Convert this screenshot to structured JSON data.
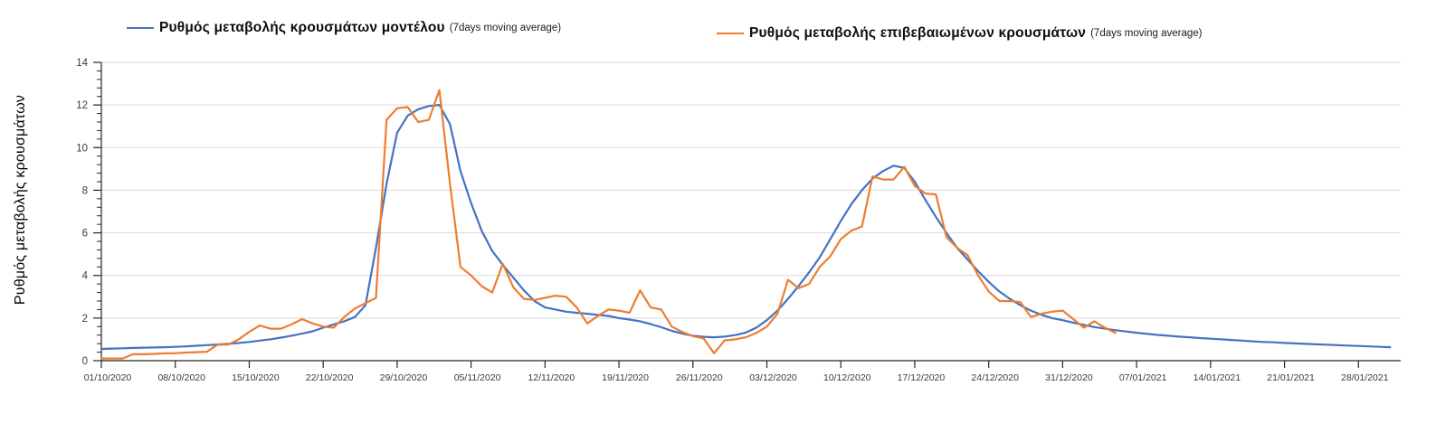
{
  "chart_data": {
    "type": "line",
    "title": "",
    "xlabel": "",
    "ylabel": "Ρυθμός μεταβολής κρουσμάτων",
    "ylim": [
      0,
      14
    ],
    "y_major_ticks": [
      0,
      2,
      4,
      6,
      8,
      10,
      12,
      14
    ],
    "y_minor_unit": 0.4,
    "grid": "horizontal-major-only",
    "legend_position": "top",
    "frequency": "daily",
    "start_date": "01/10/2020",
    "x_tick_interval_days": 7,
    "x_tick_labels": [
      "01/10/2020",
      "08/10/2020",
      "15/10/2020",
      "22/10/2020",
      "29/10/2020",
      "05/11/2020",
      "12/11/2020",
      "19/11/2020",
      "26/11/2020",
      "03/12/2020",
      "10/12/2020",
      "17/12/2020",
      "24/12/2020",
      "31/12/2020",
      "07/01/2021",
      "14/01/2021",
      "21/01/2021",
      "28/01/2021"
    ],
    "axis_color": "#262626",
    "gridline_color": "#d9d9d9",
    "tick_label_color": "#3a3a3a",
    "series": [
      {
        "name": "Ρυθμός μεταβολής κρουσμάτων μοντέλου",
        "name_suffix": "(7days moving average)",
        "color": "#4472c4",
        "end_date": "31/01/2021",
        "values": [
          0.55,
          0.57,
          0.58,
          0.6,
          0.61,
          0.62,
          0.63,
          0.65,
          0.67,
          0.7,
          0.73,
          0.76,
          0.79,
          0.83,
          0.88,
          0.94,
          1.0,
          1.08,
          1.17,
          1.27,
          1.38,
          1.55,
          1.7,
          1.85,
          2.05,
          2.6,
          5.3,
          8.3,
          10.7,
          11.5,
          11.8,
          11.95,
          12.0,
          11.1,
          8.9,
          7.4,
          6.1,
          5.15,
          4.5,
          3.9,
          3.3,
          2.8,
          2.5,
          2.4,
          2.3,
          2.25,
          2.2,
          2.15,
          2.1,
          2.0,
          1.93,
          1.85,
          1.72,
          1.57,
          1.4,
          1.27,
          1.17,
          1.12,
          1.1,
          1.13,
          1.2,
          1.32,
          1.55,
          1.9,
          2.35,
          2.9,
          3.5,
          4.15,
          4.85,
          5.7,
          6.55,
          7.35,
          8.0,
          8.55,
          8.9,
          9.15,
          9.05,
          8.4,
          7.55,
          6.75,
          6.0,
          5.3,
          4.75,
          4.2,
          3.7,
          3.25,
          2.9,
          2.6,
          2.35,
          2.15,
          2.0,
          1.9,
          1.78,
          1.68,
          1.58,
          1.5,
          1.43,
          1.37,
          1.31,
          1.26,
          1.21,
          1.17,
          1.13,
          1.1,
          1.06,
          1.03,
          1.0,
          0.97,
          0.94,
          0.91,
          0.88,
          0.86,
          0.83,
          0.81,
          0.79,
          0.77,
          0.75,
          0.73,
          0.71,
          0.69,
          0.67,
          0.65,
          0.63
        ]
      },
      {
        "name": "Ρυθμός μεταβολής επιβεβαιωμένων κρουσμάτων",
        "name_suffix": "(7days moving average)",
        "color": "#ed7d31",
        "end_date": "05/01/2021",
        "values": [
          0.1,
          0.1,
          0.1,
          0.3,
          0.3,
          0.32,
          0.35,
          0.35,
          0.38,
          0.4,
          0.42,
          0.75,
          0.75,
          1.0,
          1.35,
          1.65,
          1.5,
          1.5,
          1.7,
          1.95,
          1.75,
          1.6,
          1.55,
          2.05,
          2.45,
          2.7,
          2.95,
          11.3,
          11.85,
          11.9,
          11.2,
          11.3,
          12.7,
          8.3,
          4.4,
          4.0,
          3.5,
          3.2,
          4.55,
          3.45,
          2.9,
          2.85,
          2.95,
          3.05,
          3.0,
          2.5,
          1.75,
          2.1,
          2.4,
          2.35,
          2.25,
          3.3,
          2.5,
          2.4,
          1.6,
          1.35,
          1.15,
          1.05,
          0.35,
          0.95,
          1.0,
          1.1,
          1.3,
          1.6,
          2.2,
          3.8,
          3.4,
          3.6,
          4.4,
          4.9,
          5.7,
          6.1,
          6.3,
          8.65,
          8.5,
          8.5,
          9.1,
          8.2,
          7.85,
          7.8,
          5.8,
          5.3,
          4.95,
          4.0,
          3.25,
          2.8,
          2.8,
          2.75,
          2.05,
          2.2,
          2.3,
          2.35,
          1.95,
          1.55,
          1.85,
          1.55,
          1.3
        ]
      }
    ]
  }
}
